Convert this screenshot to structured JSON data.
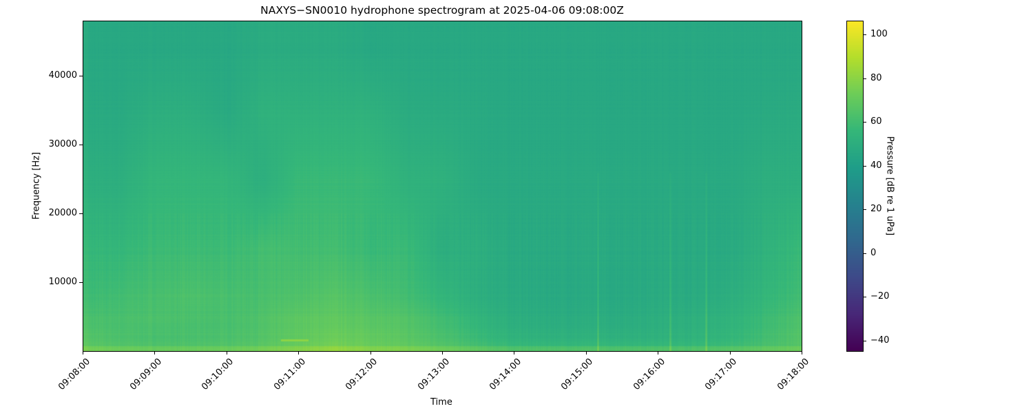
{
  "chart_data": {
    "type": "heatmap",
    "title": "NAXYS-SN0010 hydrophone spectrogram at 2025-04-06 09:08:00Z",
    "xlabel": "Time",
    "ylabel": "Frequency [Hz]",
    "colorbar_label": "Pressure [dB re 1 uPa]",
    "colormap": "viridis",
    "x_tick_labels": [
      "09:08:00",
      "09:09:00",
      "09:10:00",
      "09:11:00",
      "09:12:00",
      "09:13:00",
      "09:14:00",
      "09:15:00",
      "09:16:00",
      "09:17:00",
      "09:18:00"
    ],
    "x_range": [
      "09:08:00",
      "09:18:00"
    ],
    "y_ticks": [
      10000,
      20000,
      30000,
      40000
    ],
    "y_range": [
      0,
      48000
    ],
    "colorbar_ticks": [
      -40,
      -20,
      0,
      20,
      40,
      60,
      80,
      100
    ],
    "color_range": [
      -44.7,
      106.3
    ],
    "grid": false,
    "time_step_s": 30,
    "frequency_bands_hz": [
      250,
      2000,
      4500,
      8000,
      15000,
      25000,
      35000,
      44000
    ],
    "values_db": [
      [
        68,
        66,
        65,
        65,
        66,
        68,
        72,
        76,
        72,
        70,
        67,
        62,
        58,
        58,
        58,
        58,
        58,
        58,
        60,
        63,
        66
      ],
      [
        65,
        63,
        62,
        62,
        63,
        65,
        69,
        72,
        70,
        67,
        63,
        57,
        53,
        52,
        52,
        52,
        52,
        53,
        55,
        60,
        66
      ],
      [
        62,
        62,
        63,
        62,
        62,
        64,
        68,
        69,
        67,
        65,
        60,
        54,
        50,
        49,
        49,
        49,
        50,
        51,
        53,
        58,
        64
      ],
      [
        58,
        60,
        62,
        63,
        62,
        62,
        64,
        66,
        63,
        60,
        55,
        50,
        48,
        47,
        47,
        47,
        48,
        48,
        50,
        55,
        60
      ],
      [
        55,
        55,
        58,
        58,
        58,
        60,
        60,
        60,
        57,
        57,
        50,
        50,
        47,
        47,
        47,
        47,
        47,
        47,
        47,
        52,
        57
      ],
      [
        50,
        50,
        55,
        55,
        55,
        50,
        57,
        57,
        57,
        52,
        52,
        47,
        47,
        47,
        47,
        47,
        47,
        47,
        47,
        50,
        50
      ],
      [
        47,
        47,
        50,
        50,
        47,
        52,
        52,
        52,
        52,
        48,
        48,
        47,
        46,
        46,
        46,
        46,
        46,
        46,
        46,
        47,
        48
      ],
      [
        46,
        46,
        46,
        46,
        46,
        48,
        48,
        48,
        46,
        46,
        46,
        46,
        46,
        46,
        46,
        46,
        46,
        46,
        46,
        46,
        46
      ]
    ],
    "transients": [
      "09:15:10",
      "09:16:10",
      "09:16:40"
    ],
    "tonal": {
      "frequency_hz": 1600,
      "start": "09:10:45",
      "end": "09:11:08",
      "level_db": 80
    }
  }
}
